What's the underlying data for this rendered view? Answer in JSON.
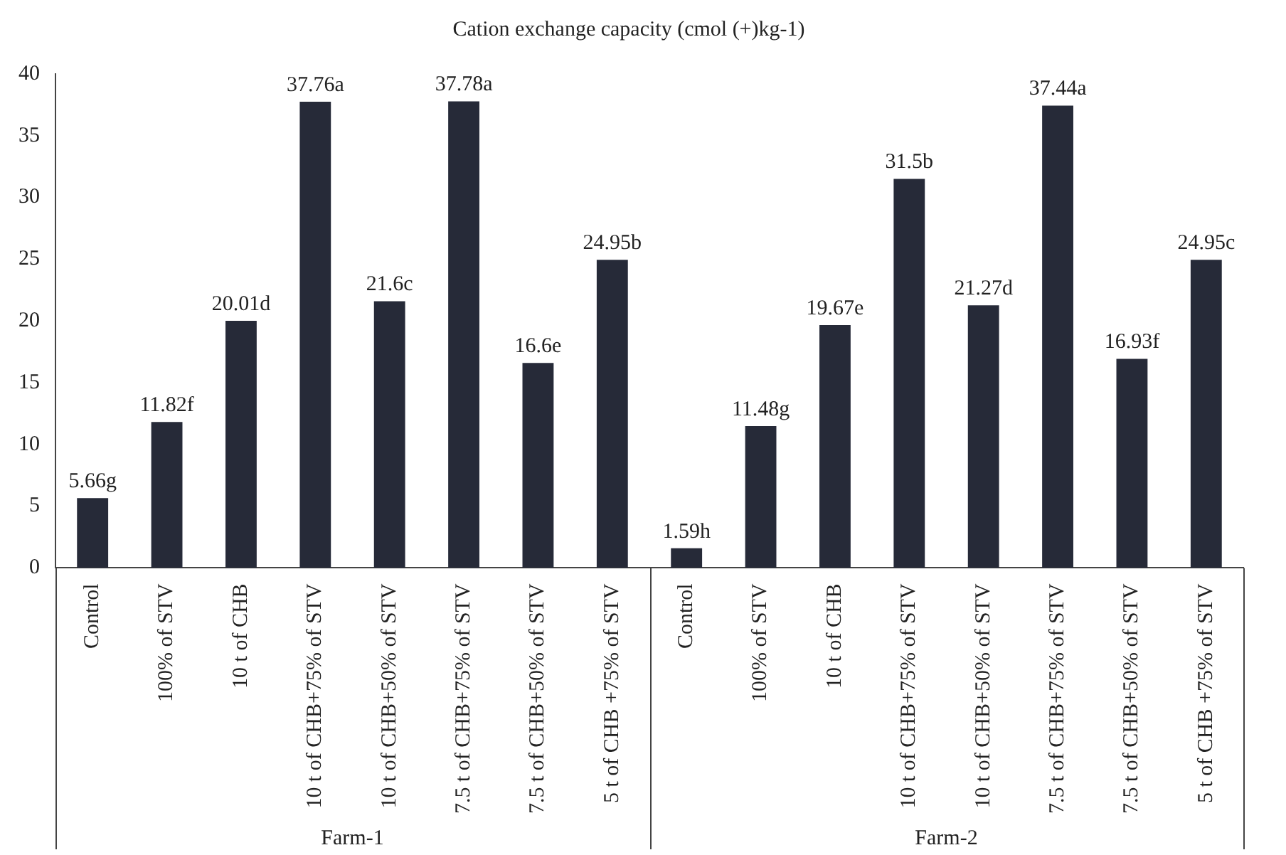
{
  "chart_data": {
    "type": "bar",
    "title": "Cation exchange capacity (cmol (+)kg-1)",
    "categories": [
      "Control",
      "100% of STV",
      "10 t of CHB",
      "10 t of CHB+75% of STV",
      "10 t of CHB+50% of STV",
      "7.5 t of CHB+75% of STV",
      "7.5 t of CHB+50% of STV",
      "5 t of CHB +75% of STV",
      "Control",
      "100% of STV",
      "10 t of CHB",
      "10 t of CHB+75% of STV",
      "10 t of CHB+50% of STV",
      "7.5 t of CHB+75% of STV",
      "7.5 t of CHB+50% of STV",
      "5 t of CHB +75% of STV"
    ],
    "values": [
      5.66,
      11.82,
      20.01,
      37.76,
      21.6,
      37.78,
      16.6,
      24.95,
      1.59,
      11.48,
      19.67,
      31.5,
      21.27,
      37.44,
      16.93,
      24.95
    ],
    "value_labels": [
      "5.66g",
      "11.82f",
      "20.01d",
      "37.76a",
      "21.6c",
      "37.78a",
      "16.6e",
      "24.95b",
      "1.59h",
      "11.48g",
      "19.67e",
      "31.5b",
      "21.27d",
      "37.44a",
      "16.93f",
      "24.95c"
    ],
    "color": "#262a38",
    "ylim": [
      0,
      40
    ],
    "yticks": [
      0,
      5,
      10,
      15,
      20,
      25,
      30,
      35,
      40
    ],
    "grid": false,
    "legend": false,
    "annotations": [
      "Farm-1",
      "Farm-2"
    ]
  }
}
